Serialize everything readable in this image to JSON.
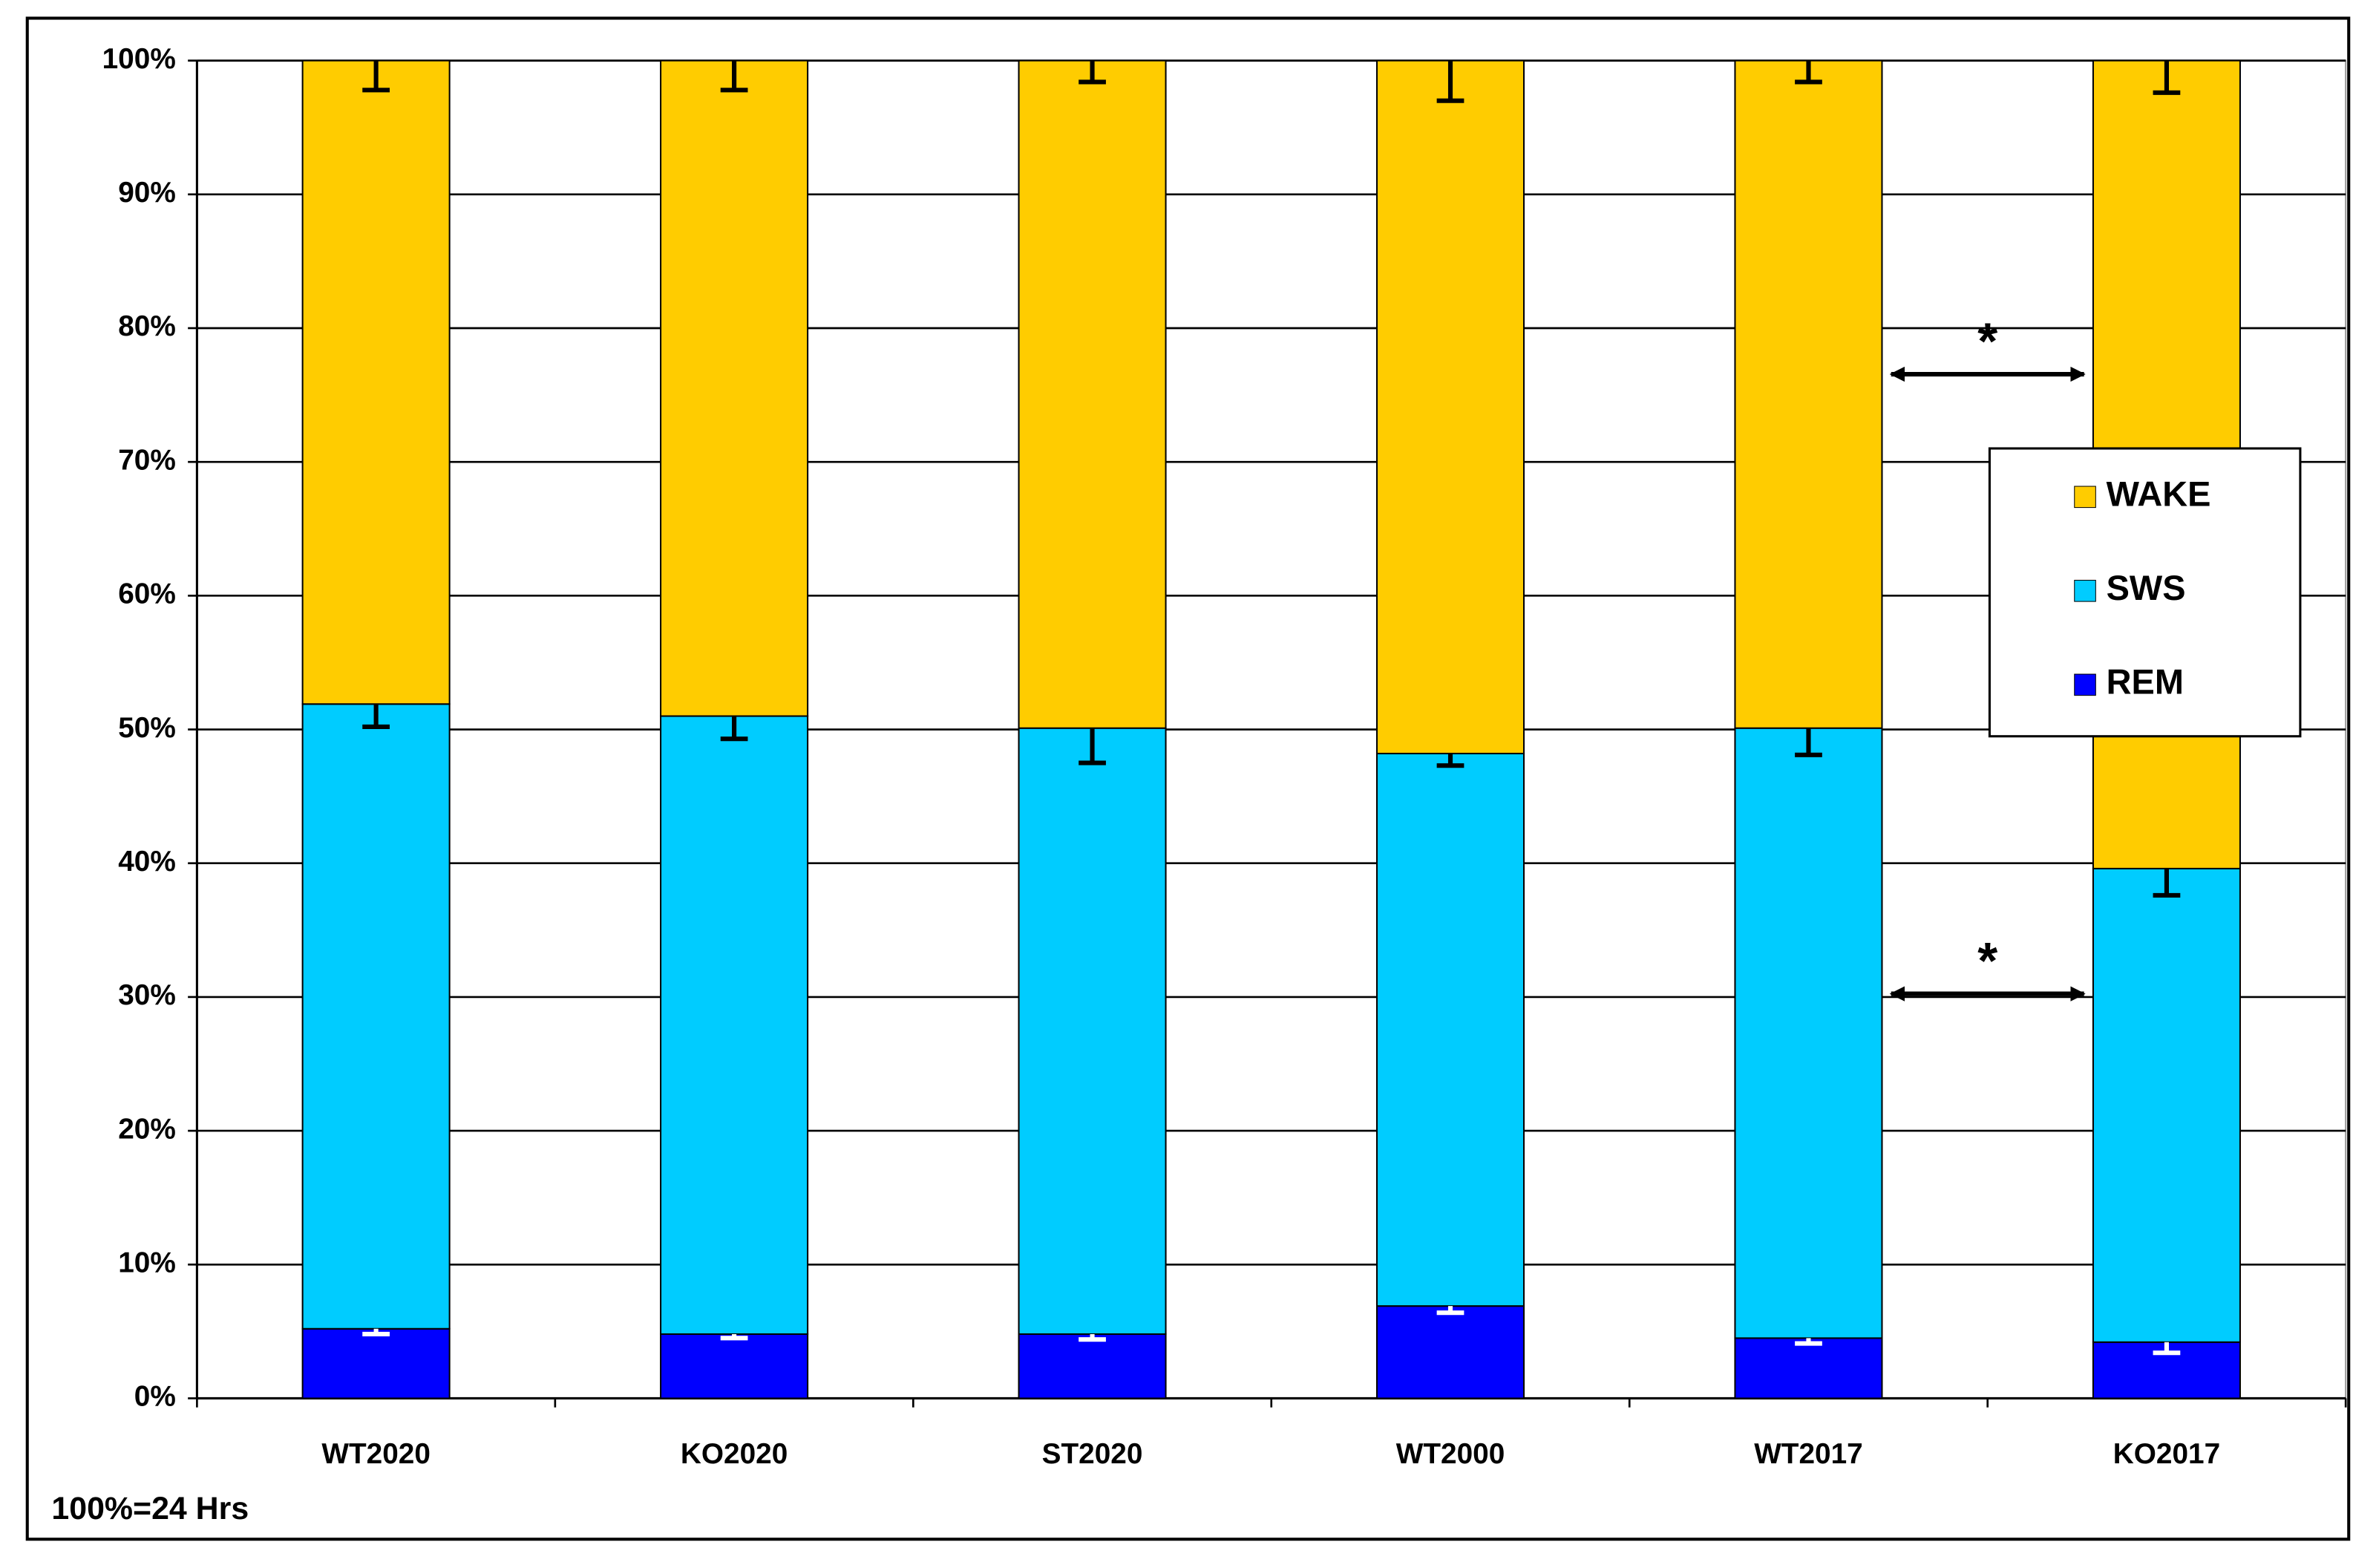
{
  "chart_data": {
    "type": "stacked_bar",
    "categories": [
      "WT2020",
      "KO2020",
      "ST2020",
      "WT2000",
      "WT2017",
      "KO2017"
    ],
    "series": [
      {
        "name": "REM",
        "color": "#0000ff",
        "error_color": "#ffffff",
        "values": [
          5.2,
          4.8,
          4.8,
          6.9,
          4.5,
          4.2
        ],
        "errors": [
          0.4,
          0.3,
          0.4,
          0.5,
          0.4,
          0.8
        ]
      },
      {
        "name": "SWS",
        "color": "#00ccff",
        "error_color": "#000000",
        "values": [
          46.7,
          46.2,
          45.3,
          41.3,
          45.6,
          35.4
        ],
        "errors": [
          1.7,
          1.7,
          2.6,
          0.9,
          2.0,
          2.0
        ]
      },
      {
        "name": "WAKE",
        "color": "#ffcc00",
        "error_color": "#000000",
        "values": [
          48.1,
          49.0,
          49.9,
          51.8,
          49.9,
          60.4
        ],
        "errors": [
          2.2,
          2.2,
          1.6,
          3.0,
          1.6,
          2.4
        ]
      }
    ],
    "ylim": [
      0,
      100
    ],
    "yticks": [
      {
        "value": 0,
        "label": "0%"
      },
      {
        "value": 10,
        "label": "10%"
      },
      {
        "value": 20,
        "label": "20%"
      },
      {
        "value": 30,
        "label": "30%"
      },
      {
        "value": 40,
        "label": "40%"
      },
      {
        "value": 50,
        "label": "50%"
      },
      {
        "value": 60,
        "label": "60%"
      },
      {
        "value": 70,
        "label": "70%"
      },
      {
        "value": 80,
        "label": "80%"
      },
      {
        "value": 90,
        "label": "90%"
      },
      {
        "value": 100,
        "label": "100%"
      }
    ],
    "grid": true,
    "legend": "right",
    "annotations": [
      {
        "text": "*"
      },
      {
        "text": "*"
      }
    ],
    "note": "100%=24 Hrs"
  }
}
